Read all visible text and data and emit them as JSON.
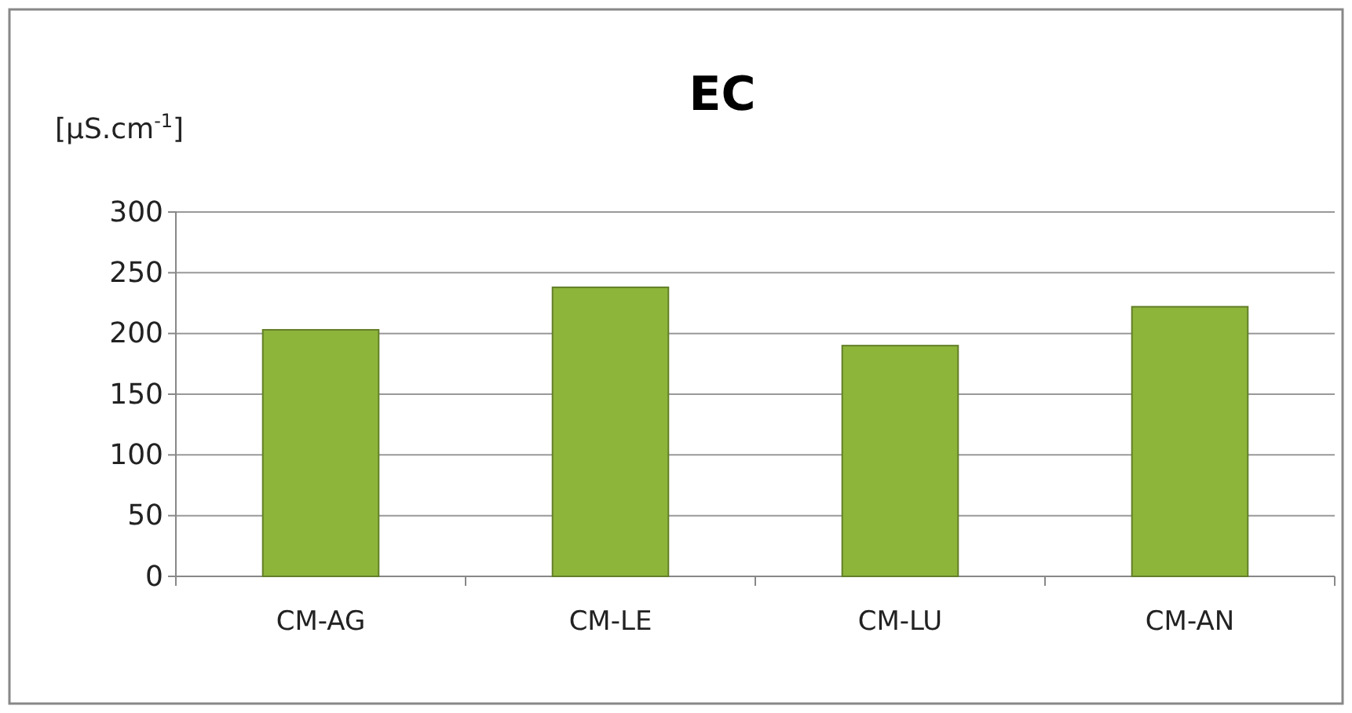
{
  "chart_data": {
    "type": "bar",
    "title": "EC",
    "ylabel": "[µS.cm$^{-1}$]",
    "categories": [
      "CM-AG",
      "CM-LE",
      "CM-LU",
      "CM-AN"
    ],
    "values": [
      203,
      238,
      190,
      222
    ],
    "color": "#8db53a",
    "ylim": [
      0,
      300
    ],
    "yticks": [
      0,
      50,
      100,
      150,
      200,
      250,
      300
    ],
    "grid": "y"
  }
}
